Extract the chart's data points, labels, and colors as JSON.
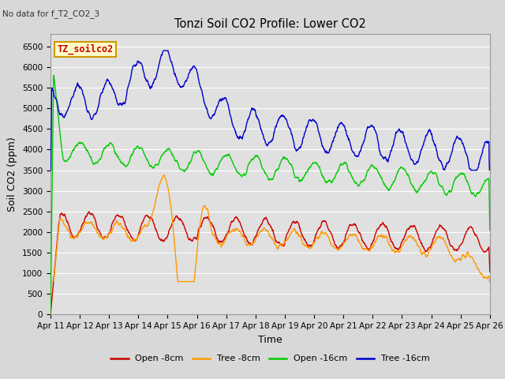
{
  "title": "Tonzi Soil CO2 Profile: Lower CO2",
  "no_data_text": "No data for f_T2_CO2_3",
  "legend_box_text": "TZ_soilco2",
  "xlabel": "Time",
  "ylabel": "Soil CO2 (ppm)",
  "ylim": [
    0,
    6800
  ],
  "yticks": [
    0,
    500,
    1000,
    1500,
    2000,
    2500,
    3000,
    3500,
    4000,
    4500,
    5000,
    5500,
    6000,
    6500
  ],
  "xticklabels": [
    "Apr 11",
    "Apr 12",
    "Apr 13",
    "Apr 14",
    "Apr 15",
    "Apr 16",
    "Apr 17",
    "Apr 18",
    "Apr 19",
    "Apr 20",
    "Apr 21",
    "Apr 22",
    "Apr 23",
    "Apr 24",
    "Apr 25",
    "Apr 26"
  ],
  "colors": {
    "open_8cm": "#cc0000",
    "tree_8cm": "#ff9900",
    "open_16cm": "#00cc00",
    "tree_16cm": "#0000cc"
  },
  "fig_facecolor": "#d8d8d8",
  "plot_facecolor": "#e0e0e0",
  "grid_color": "#ffffff",
  "legend_labels": [
    "Open -8cm",
    "Tree -8cm",
    "Open -16cm",
    "Tree -16cm"
  ]
}
